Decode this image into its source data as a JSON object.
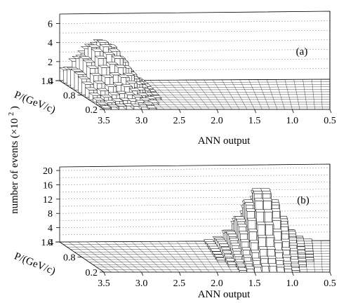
{
  "figure": {
    "ylabel_main": "number of events",
    "ylabel_unit": "(×10",
    "ylabel_exp": "2",
    "ylabel_close": ")"
  },
  "chart_data": [
    {
      "type": "bar",
      "panel_label": "(a)",
      "xlabel": "ANN output",
      "plabel": "P/(GeV/c)",
      "x_ticks": [
        "3.5",
        "3.0",
        "2.5",
        "2.0",
        "1.5",
        "1.0",
        "0.5"
      ],
      "p_ticks": [
        "1.4",
        "0.8",
        "0.2"
      ],
      "y_ticks": [
        "0",
        "2",
        "4",
        "6"
      ],
      "zlim": [
        0,
        7
      ],
      "xlim": [
        3.5,
        0.5
      ],
      "plim": [
        1.4,
        0.2
      ],
      "grid": true,
      "peak": {
        "ann": 3.15,
        "p": 1.05,
        "height": 5.0
      },
      "peak_description": "signal concentrated at ANN output near 3.0-3.3, broad in momentum"
    },
    {
      "type": "bar",
      "panel_label": "(b)",
      "xlabel": "ANN output",
      "plabel": "P/(GeV/c)",
      "x_ticks": [
        "3.5",
        "3.0",
        "2.5",
        "2.0",
        "1.5",
        "1.0",
        "0.5"
      ],
      "p_ticks": [
        "1.4",
        "0.8",
        "0.2"
      ],
      "y_ticks": [
        "0",
        "4",
        "8",
        "12",
        "16",
        "20"
      ],
      "zlim": [
        0,
        21
      ],
      "xlim": [
        3.5,
        0.5
      ],
      "plim": [
        1.4,
        0.2
      ],
      "grid": true,
      "peak": {
        "ann": 1.3,
        "p": 1.0,
        "height": 17.5
      },
      "peak_description": "background concentrated at ANN output near 1.2-1.5, broad in momentum"
    }
  ]
}
